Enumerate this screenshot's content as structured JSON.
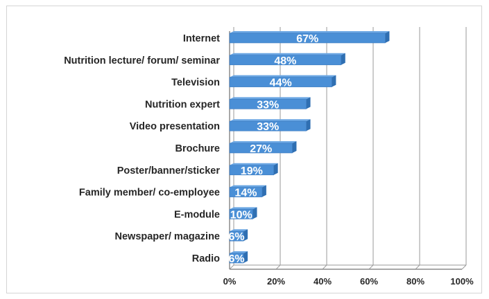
{
  "chart_data": {
    "type": "bar",
    "orientation": "horizontal",
    "categories": [
      "Internet",
      "Nutrition lecture/ forum/ seminar",
      "Television",
      "Nutrition expert",
      "Video presentation",
      "Brochure",
      "Poster/banner/sticker",
      "Family member/ co-employee",
      "E-module",
      "Newspaper/ magazine",
      "Radio"
    ],
    "values": [
      67,
      48,
      44,
      33,
      33,
      27,
      19,
      14,
      10,
      6,
      6
    ],
    "data_labels": [
      "67%",
      "48%",
      "44%",
      "33%",
      "33%",
      "27%",
      "19%",
      "14%",
      "10%",
      "6%",
      "6%"
    ],
    "x_ticks": [
      "0%",
      "20%",
      "40%",
      "60%",
      "80%",
      "100%"
    ],
    "xlim": [
      0,
      100
    ],
    "grid": "vertical",
    "title": "",
    "xlabel": "",
    "ylabel": "",
    "colors": {
      "bar": "#4a8fd6",
      "bar_top": "#6aa6e3",
      "bar_side": "#2f6fb2",
      "grid": "#9a9a9a",
      "wall": "#8c8c8c"
    }
  }
}
